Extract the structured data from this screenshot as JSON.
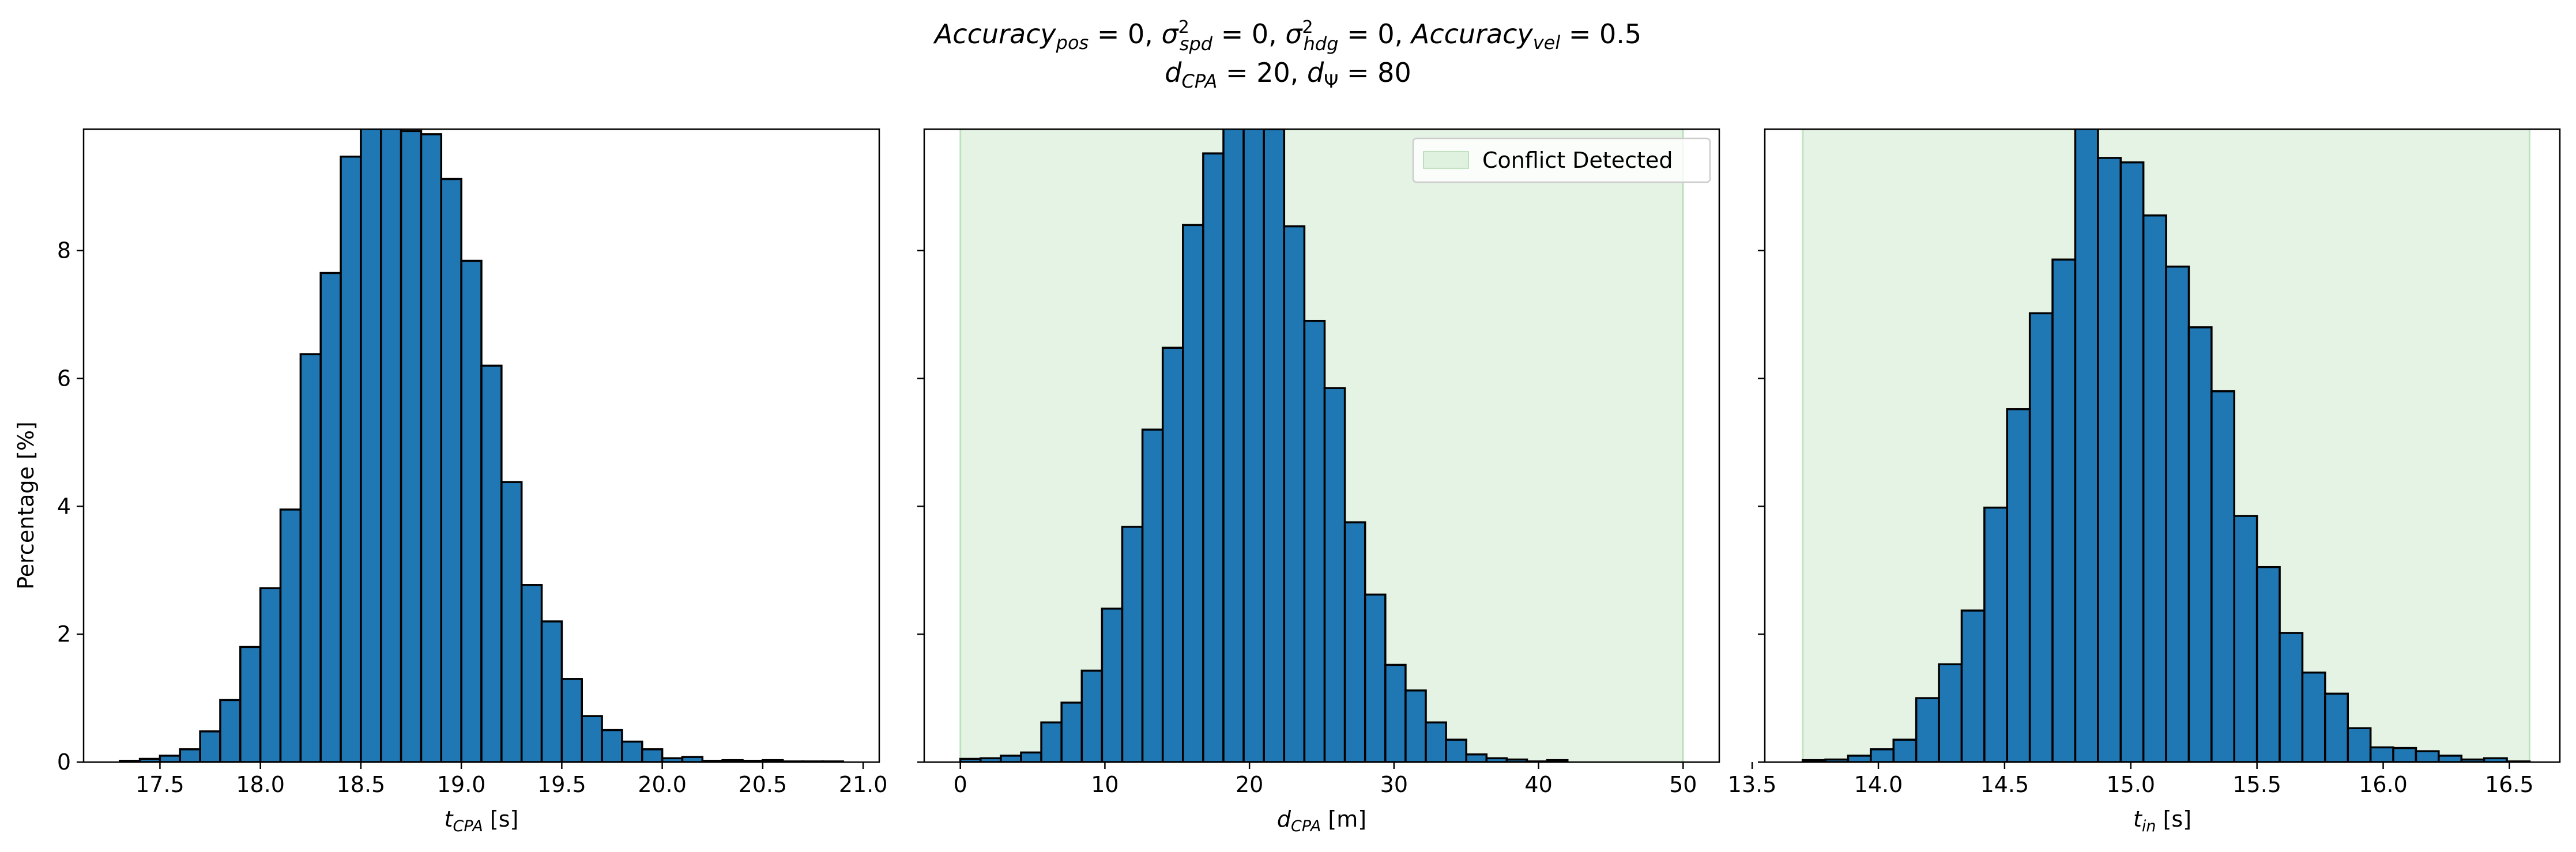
{
  "figure": {
    "title_line1": {
      "acc_pos_base": "Accuracy",
      "acc_pos_sub": "pos",
      "acc_pos_val": " = 0, ",
      "spd_base": "σ",
      "spd_sup": "2",
      "spd_sub": "spd",
      "spd_val": " = 0, ",
      "hdg_base": "σ",
      "hdg_sup": "2",
      "hdg_sub": "hdg",
      "hdg_val": " = 0, ",
      "acc_vel_base": "Accuracy",
      "acc_vel_sub": "vel",
      "acc_vel_val": " = 0.5"
    },
    "title_line2": {
      "dcpa_base": "d",
      "dcpa_sub": "CPA",
      "dcpa_val": " = 20, ",
      "dpsi_base": "d",
      "dpsi_sub": "Ψ",
      "dpsi_val": " = 80"
    },
    "ylabel": "Percentage [%]",
    "colors": {
      "bar": "#1f77b4",
      "edge": "#000000",
      "region": "#2ca02c"
    }
  },
  "chart_data": [
    {
      "type": "bar",
      "xlabel": {
        "base": "t",
        "sub": "CPA",
        "unit": " [s]"
      },
      "ylabel": "Percentage [%]",
      "xlim": [
        17.12,
        21.08
      ],
      "ylim": [
        0,
        9.9
      ],
      "xticks": [
        "17.5",
        "18.0",
        "18.5",
        "19.0",
        "19.5",
        "20.0",
        "20.5",
        "21.0"
      ],
      "xtick_values": [
        17.5,
        18.0,
        18.5,
        19.0,
        19.5,
        20.0,
        20.5,
        21.0
      ],
      "yticks": [
        "0",
        "2",
        "4",
        "6",
        "8"
      ],
      "ytick_values": [
        0,
        2,
        4,
        6,
        8
      ],
      "bin_edges": [
        17.3,
        17.4,
        17.5,
        17.6,
        17.7,
        17.8,
        17.9,
        18.0,
        18.1,
        18.2,
        18.3,
        18.4,
        18.5,
        18.6,
        18.7,
        18.8,
        18.9,
        19.0,
        19.1,
        19.2,
        19.3,
        19.4,
        19.5,
        19.6,
        19.7,
        19.8,
        19.9,
        20.0,
        20.1,
        20.2,
        20.3,
        20.4,
        20.5,
        20.6,
        20.7,
        20.8,
        20.9
      ],
      "values": [
        0.02,
        0.05,
        0.1,
        0.2,
        0.48,
        0.97,
        1.8,
        2.72,
        3.95,
        6.38,
        7.65,
        9.47,
        10.4,
        10.6,
        9.87,
        9.82,
        9.12,
        7.84,
        6.2,
        4.38,
        2.77,
        2.2,
        1.3,
        0.72,
        0.5,
        0.32,
        0.2,
        0.06,
        0.08,
        0.02,
        0.03,
        0.02,
        0.03,
        0.01,
        0.01,
        0.01
      ],
      "region": null
    },
    {
      "type": "bar",
      "xlabel": {
        "base": "d",
        "sub": "CPA",
        "unit": " [m]"
      },
      "xlim": [
        -2.5,
        52.5
      ],
      "ylim": [
        0,
        9.9
      ],
      "xticks": [
        "0",
        "10",
        "20",
        "30",
        "40",
        "50"
      ],
      "xtick_values": [
        0,
        10,
        20,
        30,
        40,
        50
      ],
      "bin_edges": [
        0.0,
        1.4,
        2.8,
        4.2,
        5.6,
        7.0,
        8.4,
        9.8,
        11.2,
        12.6,
        14.0,
        15.4,
        16.8,
        18.2,
        19.6,
        21.0,
        22.4,
        23.8,
        25.2,
        26.6,
        28.0,
        29.4,
        30.8,
        32.2,
        33.6,
        35.0,
        36.4,
        37.8,
        39.2,
        40.6,
        42.0
      ],
      "values": [
        0.05,
        0.06,
        0.1,
        0.15,
        0.62,
        0.93,
        1.43,
        2.4,
        3.68,
        5.2,
        6.48,
        8.4,
        9.52,
        10.2,
        10.1,
        9.9,
        8.38,
        6.9,
        5.85,
        3.75,
        2.62,
        1.52,
        1.12,
        0.62,
        0.35,
        0.12,
        0.06,
        0.04,
        0.01,
        0.03
      ],
      "legend": {
        "label": "Conflict Detected",
        "position": "upper right"
      },
      "region": {
        "label": "Conflict Detected",
        "x_from": 0,
        "x_to": 50
      }
    },
    {
      "type": "bar",
      "xlabel": {
        "base": "t",
        "sub": "in",
        "unit": " [s]"
      },
      "xlim": [
        13.55,
        16.7
      ],
      "ylim": [
        0,
        9.9
      ],
      "xticks": [
        "13.5",
        "14.0",
        "14.5",
        "15.0",
        "15.5",
        "16.0",
        "16.5"
      ],
      "xtick_values": [
        13.5,
        14.0,
        14.5,
        15.0,
        15.5,
        16.0,
        16.5
      ],
      "bin_edges": [
        13.7,
        13.79,
        13.88,
        13.97,
        14.06,
        14.15,
        14.24,
        14.33,
        14.42,
        14.51,
        14.6,
        14.69,
        14.78,
        14.87,
        14.96,
        15.05,
        15.14,
        15.23,
        15.32,
        15.41,
        15.5,
        15.59,
        15.68,
        15.77,
        15.86,
        15.95,
        16.04,
        16.13,
        16.22,
        16.31,
        16.4,
        16.49,
        16.58
      ],
      "values": [
        0.03,
        0.04,
        0.1,
        0.2,
        0.35,
        1.0,
        1.53,
        2.37,
        3.98,
        5.52,
        7.02,
        7.86,
        10.5,
        9.45,
        9.38,
        8.55,
        7.75,
        6.8,
        5.8,
        3.85,
        3.05,
        2.02,
        1.4,
        1.07,
        0.53,
        0.23,
        0.22,
        0.17,
        0.1,
        0.04,
        0.06,
        0.01
      ],
      "region": {
        "label": "",
        "x_from": 13.7,
        "x_to": 16.58
      }
    }
  ]
}
